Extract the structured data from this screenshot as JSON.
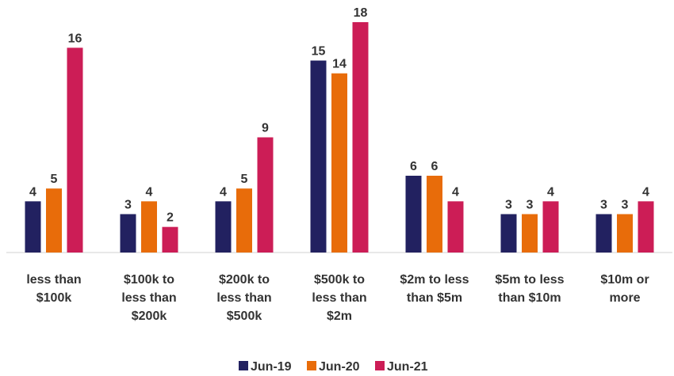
{
  "chart_data": {
    "type": "bar",
    "categories": [
      "less than $100k",
      "$100k to less than $200k",
      "$200k to less than $500k",
      "$500k to less than $2m",
      "$2m to less than $5m",
      "$5m to less than $10m",
      "$10m or more"
    ],
    "series": [
      {
        "name": "Jun-19",
        "color": "#222160",
        "values": [
          4,
          3,
          4,
          15,
          6,
          3,
          3
        ]
      },
      {
        "name": "Jun-20",
        "color": "#e86c0a",
        "values": [
          5,
          4,
          5,
          14,
          6,
          3,
          3
        ]
      },
      {
        "name": "Jun-21",
        "color": "#cc1d56",
        "values": [
          16,
          2,
          9,
          18,
          4,
          4,
          4
        ]
      }
    ],
    "legend": "bottom"
  }
}
